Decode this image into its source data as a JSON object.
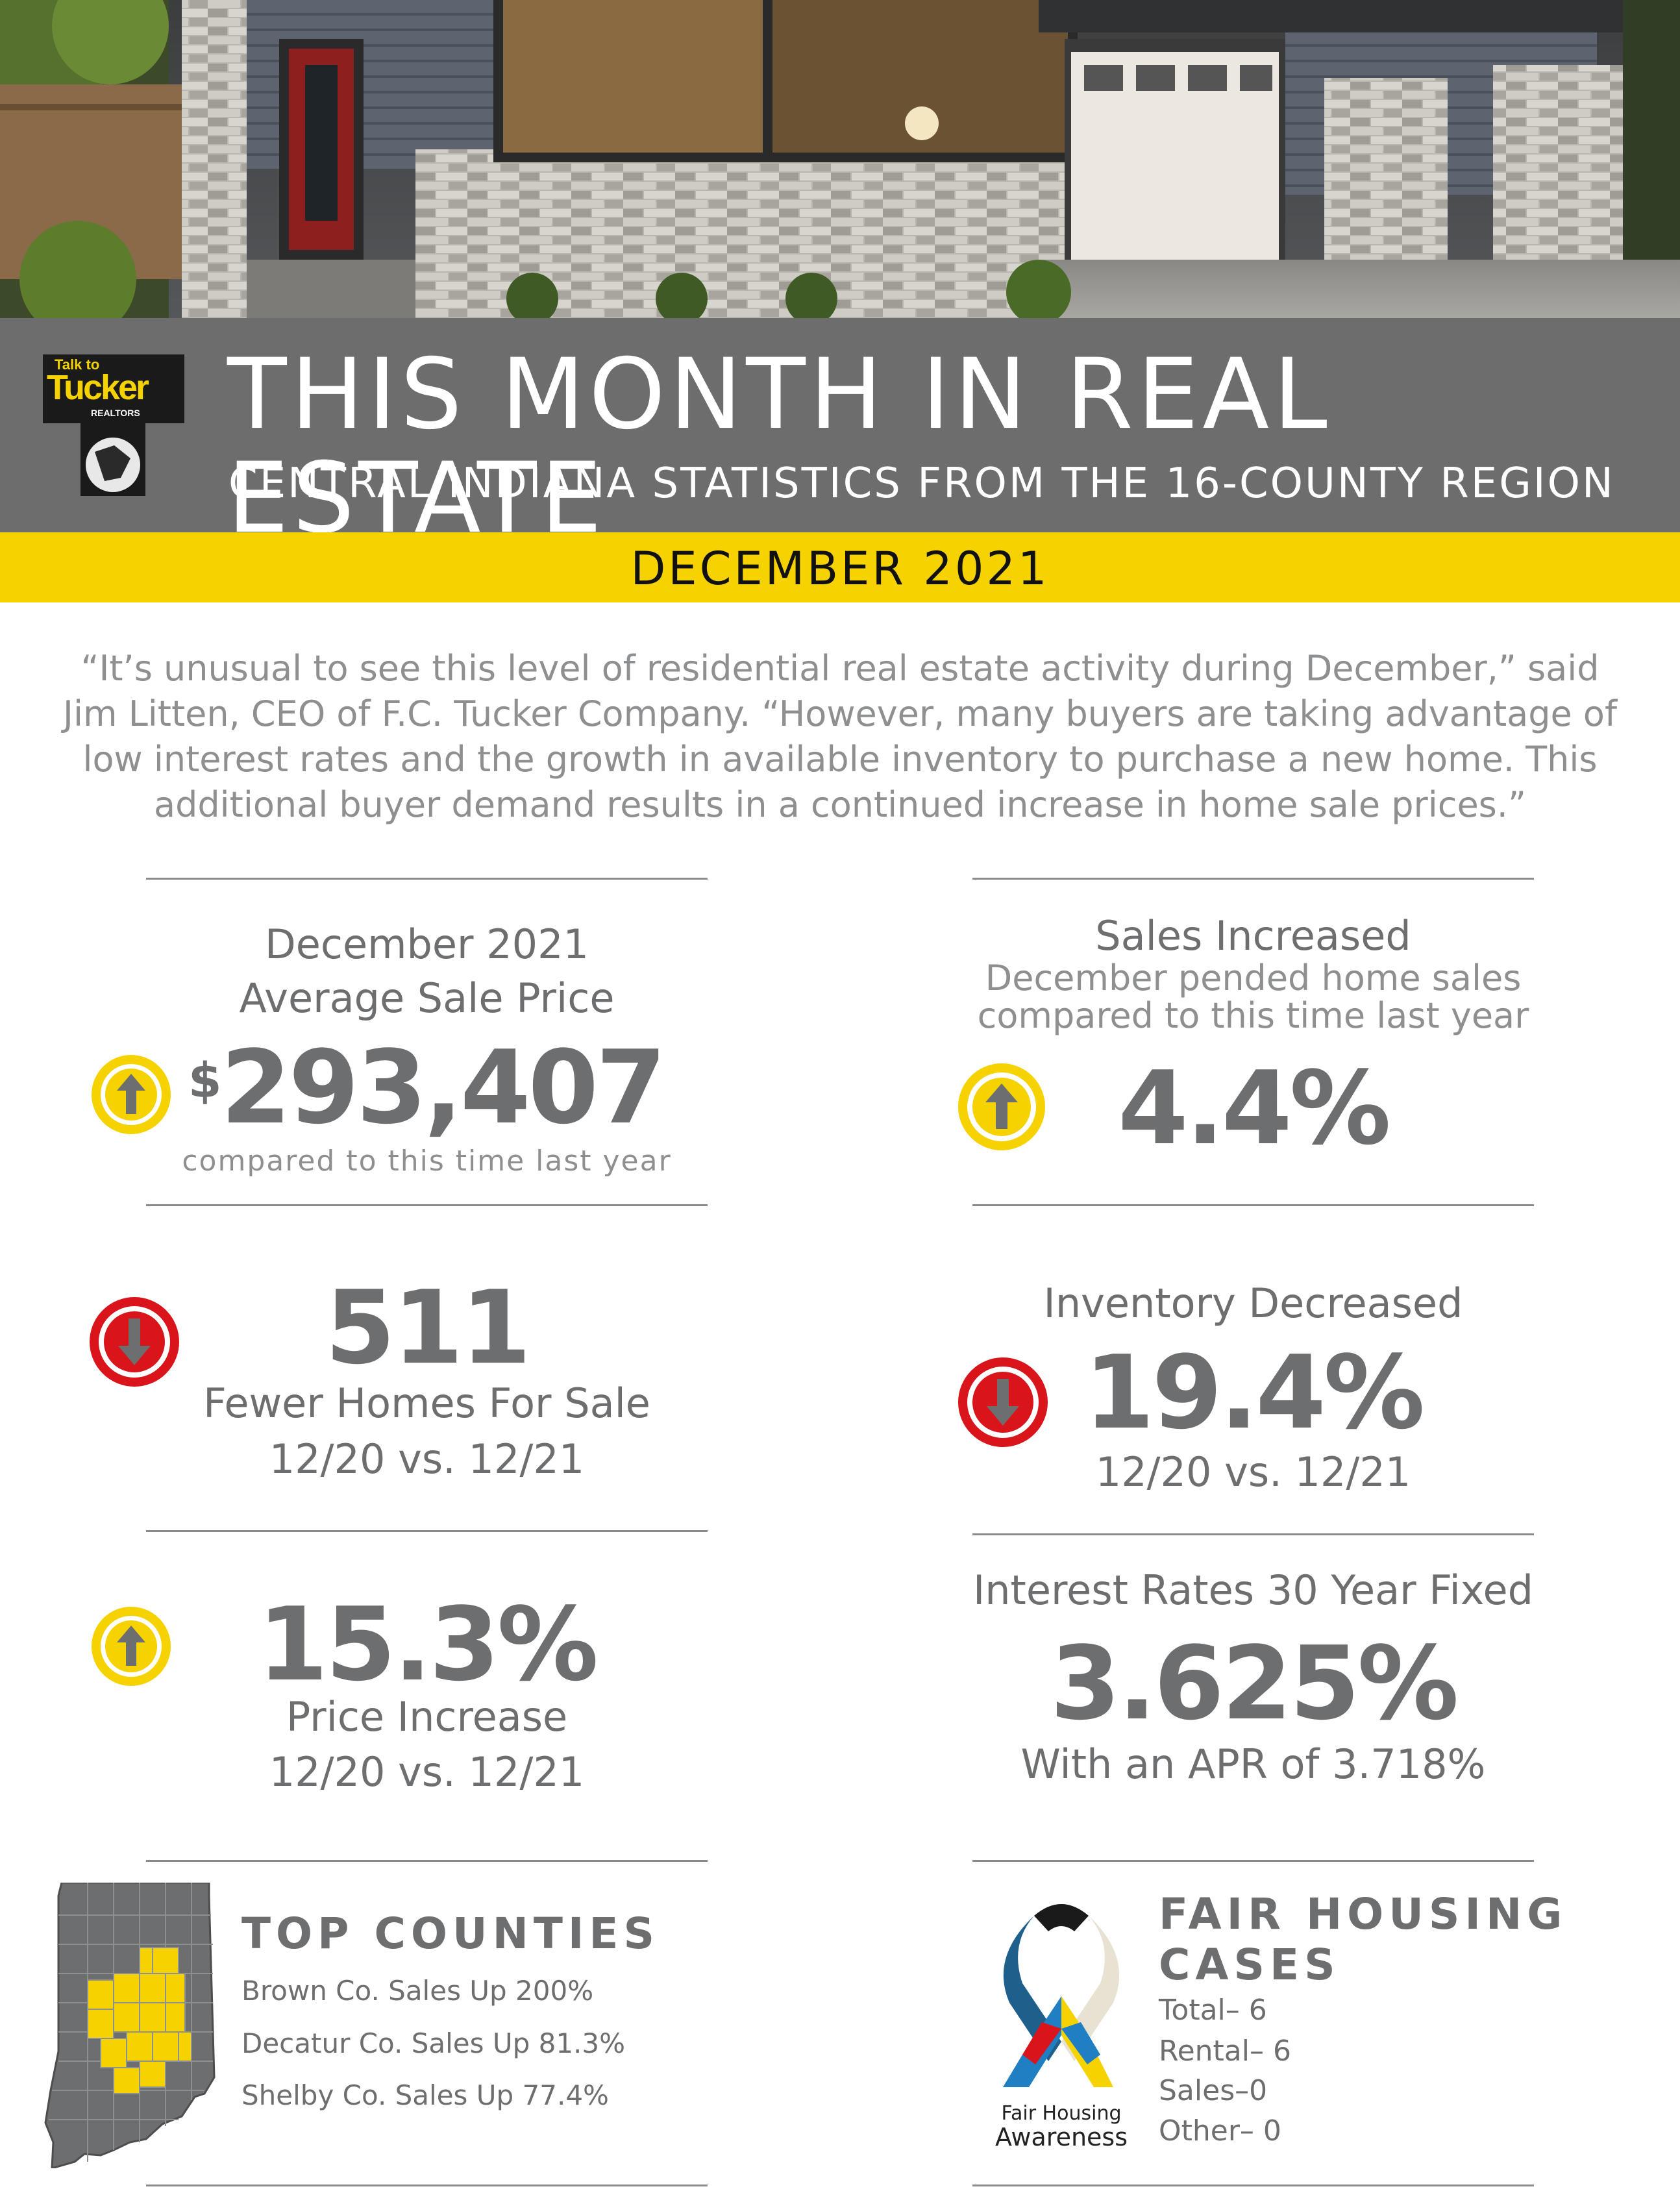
{
  "header": {
    "title": "THIS MONTH IN REAL ESTATE",
    "subtitle": "CENTRAL INDIANA STATISTICS FROM THE 16-COUNTY REGION",
    "month": "DECEMBER 2021",
    "logo_top": "Talk to",
    "logo_brand": "Tucker",
    "logo_realtors": "REALTORS"
  },
  "quote": "“It’s unusual to see this level of residential real estate activity during December,” said Jim Litten, CEO of F.C. Tucker Company. “However, many buyers are taking advantage of low interest rates and the growth in available inventory to purchase a new home. This additional buyer demand results in a continued increase in home sale prices.”",
  "stats": {
    "avg_price": {
      "label1": "December 2021",
      "label2": "Average Sale Price",
      "currency": "$",
      "value": "293,407",
      "note": "compared to this time last year",
      "trend": "up"
    },
    "sales": {
      "label": "Sales Increased",
      "sub1": "December pended home sales",
      "sub2": "compared to this time last year",
      "value": "4.4%",
      "trend": "up"
    },
    "fewer_homes": {
      "value": "511",
      "label": "Fewer Homes For Sale",
      "period": "12/20 vs. 12/21",
      "trend": "down"
    },
    "inventory": {
      "label": "Inventory Decreased",
      "value": "19.4%",
      "period": "12/20 vs. 12/21",
      "trend": "down"
    },
    "price_increase": {
      "value": "15.3%",
      "label": "Price Increase",
      "period": "12/20 vs. 12/21",
      "trend": "up"
    },
    "interest": {
      "label": "Interest Rates 30 Year Fixed",
      "value": "3.625%",
      "apr": "With an APR of 3.718%"
    }
  },
  "top_counties": {
    "heading": "TOP COUNTIES",
    "items": [
      "Brown Co. Sales Up 200%",
      "Decatur Co. Sales Up 81.3%",
      "Shelby Co. Sales Up 77.4%"
    ]
  },
  "fair_housing": {
    "heading1": "FAIR HOUSING",
    "heading2": "CASES",
    "items": [
      "Total– 6",
      "Rental– 6",
      "Sales–0",
      "Other– 0"
    ],
    "ribbon_label1": "Fair Housing",
    "ribbon_label2": "Awareness"
  },
  "colors": {
    "band": "#6d6d6d",
    "accent_yellow": "#f6d200",
    "down_red": "#d9141b",
    "text_gray": "#6d6e70"
  },
  "icons": {
    "up": "arrow-up-circle-icon",
    "down": "arrow-down-circle-icon"
  }
}
